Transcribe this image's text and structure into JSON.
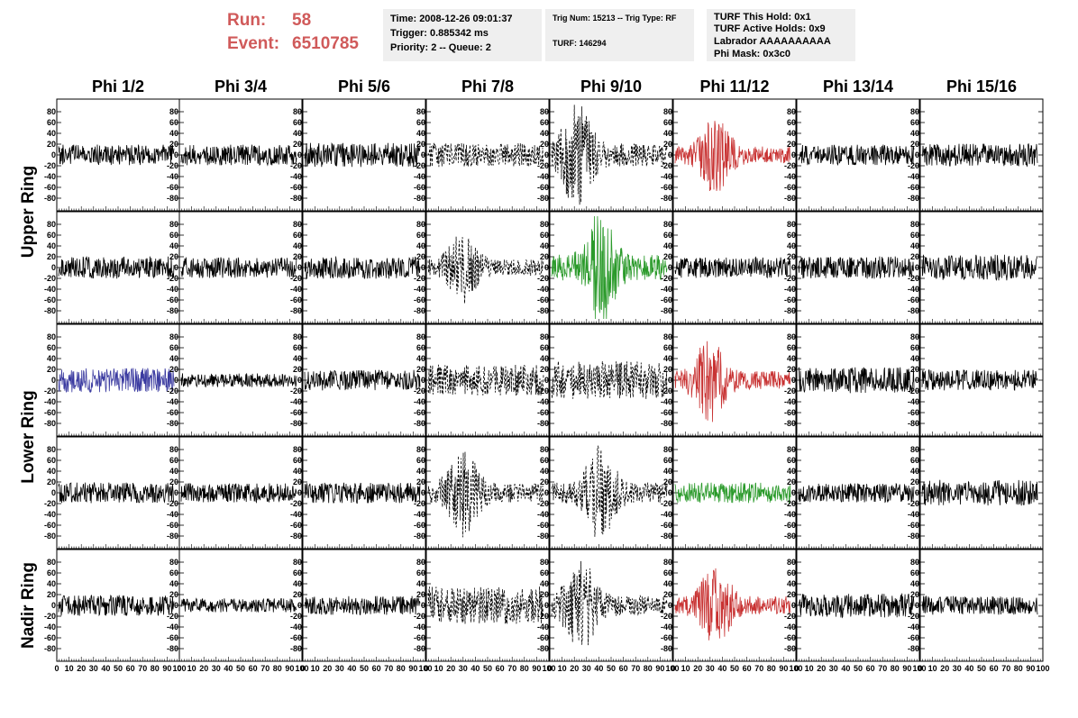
{
  "header": {
    "run_label": "Run:",
    "run_value": "58",
    "event_label": "Event:",
    "event_value": "6510785",
    "accent_color": "#d05a5a",
    "time_box": {
      "line1": "Time: 2008-12-26 09:01:37",
      "line2": "Trigger: 0.885342 ms",
      "line3": "Priority: 2 -- Queue: 2"
    },
    "trig_box": {
      "line1": "Trig Num: 15213 -- Trig Type: RF",
      "line2": "TURF: 146294"
    },
    "turf_box": {
      "line1": "TURF This Hold: 0x1",
      "line2": "TURF Active Holds: 0x9",
      "line3": "Labrador AAAAAAAAAA",
      "line4": "Phi Mask: 0x3c0"
    }
  },
  "columns": [
    "Phi 1/2",
    "Phi 3/4",
    "Phi 5/6",
    "Phi 7/8",
    "Phi 9/10",
    "Phi 11/12",
    "Phi 13/14",
    "Phi 15/16"
  ],
  "ring_labels": [
    {
      "text": "Upper Ring",
      "rows": [
        0,
        1
      ]
    },
    {
      "text": "Lower Ring",
      "rows": [
        2,
        3
      ]
    },
    {
      "text": "Nadir Ring",
      "rows": [
        4,
        4
      ]
    }
  ],
  "chart_data": {
    "type": "line",
    "xlim": [
      0,
      100
    ],
    "ylim": [
      -95,
      95
    ],
    "yticks": [
      -80,
      -60,
      -40,
      -20,
      0,
      20,
      40,
      60,
      80
    ],
    "x_tick_labels": [
      "0",
      "10",
      "20",
      "30",
      "40",
      "50",
      "60",
      "70",
      "80",
      "90",
      "100"
    ],
    "grid": false,
    "samples_per_trace": 260,
    "styles": {
      "normal": {
        "color": "#000000",
        "dash": ""
      },
      "dashed": {
        "color": "#000000",
        "dash": "3,2"
      },
      "red": {
        "color": "#c83232",
        "dash": ""
      },
      "green": {
        "color": "#2a9a2a",
        "dash": ""
      },
      "blue": {
        "color": "#3a3aa0",
        "dash": ""
      }
    },
    "panels": [
      [
        {
          "style": "normal",
          "amp": 12,
          "seed": 11
        },
        {
          "style": "normal",
          "amp": 12,
          "seed": 12
        },
        {
          "style": "normal",
          "amp": 14,
          "seed": 13
        },
        {
          "style": "dashed",
          "amp": 14,
          "seed": 14
        },
        {
          "style": "dashed",
          "amp": 38,
          "burst": 22,
          "seed": 15
        },
        {
          "style": "red",
          "amp": 28,
          "burst": 35,
          "seed": 16
        },
        {
          "style": "normal",
          "amp": 12,
          "seed": 17
        },
        {
          "style": "normal",
          "amp": 13,
          "seed": 18
        }
      ],
      [
        {
          "style": "normal",
          "amp": 13,
          "seed": 21
        },
        {
          "style": "normal",
          "amp": 12,
          "seed": 22
        },
        {
          "style": "normal",
          "amp": 13,
          "seed": 23
        },
        {
          "style": "dashed",
          "amp": 26,
          "burst": 30,
          "seed": 24
        },
        {
          "style": "green",
          "amp": 42,
          "burst": 42,
          "seed": 25
        },
        {
          "style": "normal",
          "amp": 12,
          "seed": 26
        },
        {
          "style": "normal",
          "amp": 13,
          "seed": 27
        },
        {
          "style": "normal",
          "amp": 15,
          "seed": 28
        }
      ],
      [
        {
          "style": "blue",
          "amp": 14,
          "seed": 31
        },
        {
          "style": "normal",
          "amp": 8,
          "seed": 32
        },
        {
          "style": "normal",
          "amp": 12,
          "seed": 33
        },
        {
          "style": "dashed",
          "amp": 18,
          "seed": 34
        },
        {
          "style": "dashed",
          "amp": 22,
          "seed": 35
        },
        {
          "style": "red",
          "amp": 30,
          "burst": 30,
          "seed": 36
        },
        {
          "style": "normal",
          "amp": 15,
          "seed": 37
        },
        {
          "style": "normal",
          "amp": 12,
          "seed": 38
        }
      ],
      [
        {
          "style": "normal",
          "amp": 12,
          "seed": 41
        },
        {
          "style": "normal",
          "amp": 11,
          "seed": 42
        },
        {
          "style": "normal",
          "amp": 12,
          "seed": 43
        },
        {
          "style": "dashed",
          "amp": 32,
          "burst": 30,
          "seed": 44
        },
        {
          "style": "dashed",
          "amp": 34,
          "burst": 42,
          "seed": 45
        },
        {
          "style": "green",
          "amp": 12,
          "seed": 46
        },
        {
          "style": "normal",
          "amp": 11,
          "seed": 47
        },
        {
          "style": "normal",
          "amp": 15,
          "seed": 48
        }
      ],
      [
        {
          "style": "normal",
          "amp": 12,
          "seed": 51
        },
        {
          "style": "normal",
          "amp": 8,
          "seed": 52
        },
        {
          "style": "normal",
          "amp": 11,
          "seed": 53
        },
        {
          "style": "dashed",
          "amp": 22,
          "seed": 54
        },
        {
          "style": "dashed",
          "amp": 34,
          "burst": 25,
          "seed": 55
        },
        {
          "style": "red",
          "amp": 30,
          "burst": 35,
          "seed": 56
        },
        {
          "style": "normal",
          "amp": 14,
          "seed": 57
        },
        {
          "style": "normal",
          "amp": 11,
          "seed": 58
        }
      ]
    ]
  }
}
